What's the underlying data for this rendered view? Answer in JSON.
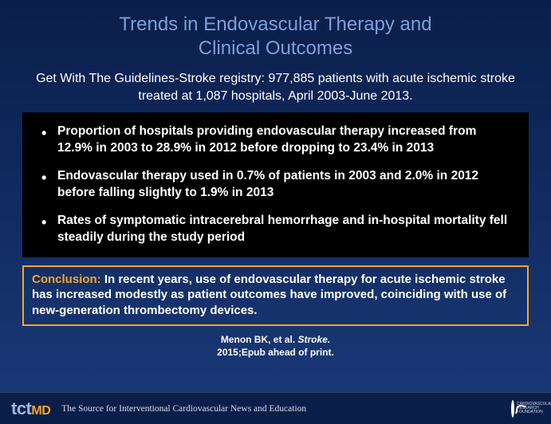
{
  "title_color": "#7da0d8",
  "accent_color": "#f6a623",
  "bg_gradient_top": "#0a1e4a",
  "bg_gradient_bottom": "#1a3a7a",
  "title_line1": "Trends in Endovascular Therapy and",
  "title_line2": "Clinical Outcomes",
  "subtitle": "Get With The Guidelines-Stroke registry:  977,885 patients with acute ischemic stroke treated at 1,087 hospitals, April 2003-June 2013.",
  "bullets": [
    "Proportion of hospitals providing endovascular therapy increased from 12.9% in 2003 to 28.9% in 2012 before dropping to 23.4% in 2013",
    "Endovascular therapy used in 0.7% of patients in 2003 and 2.0% in 2012 before falling slightly to 1.9% in 2013",
    "Rates of symptomatic intracerebral hemorrhage and in-hospital mortality fell steadily during the study period"
  ],
  "conclusion_label": "Conclusion:",
  "conclusion_text": " In recent years, use of endovascular therapy for acute ischemic stroke has increased modestly as patient outcomes have improved, coinciding with use of new-generation thrombectomy devices.",
  "citation_author": "Menon BK, et al. ",
  "citation_journal": "Stroke.",
  "citation_line2": "2015;Epub ahead of print.",
  "logo_tct": "tct",
  "logo_md": "MD",
  "tagline": "The Source for Interventional Cardiovascular News and Education",
  "crf_text": "CARDIOVASCULAR RESEARCH FOUNDATION"
}
